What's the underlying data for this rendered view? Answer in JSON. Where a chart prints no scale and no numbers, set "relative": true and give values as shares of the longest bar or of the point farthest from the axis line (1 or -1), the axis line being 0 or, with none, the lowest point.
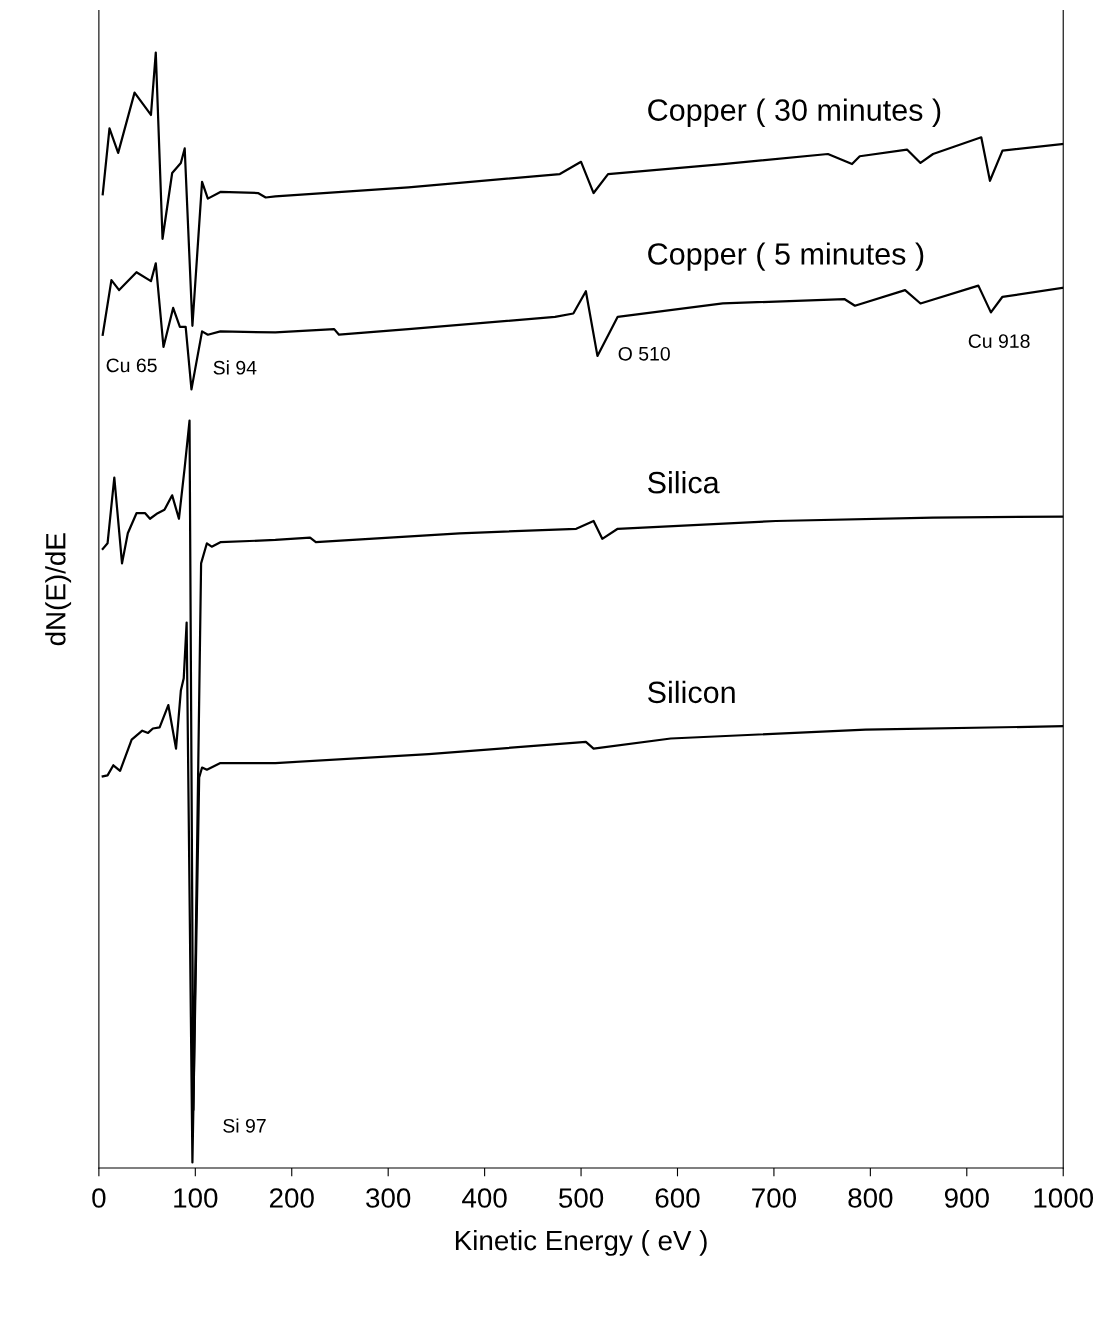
{
  "chart_data": {
    "type": "line",
    "relative": true,
    "xlabel": "Kinetic Energy ( eV )",
    "ylabel": "dN(E)/dE",
    "xlim": [
      0,
      1000
    ],
    "xticks": [
      0,
      100,
      200,
      300,
      400,
      500,
      600,
      700,
      800,
      900,
      1000
    ],
    "tick_labels": "x",
    "grid": false,
    "legend": false,
    "marker": "none",
    "line_style": "solid",
    "series": [
      {
        "name": "Copper ( 30 minutes )",
        "color": "#000000",
        "x": [
          4,
          11,
          20,
          37,
          54,
          59,
          66,
          76,
          85,
          89,
          97,
          107,
          113,
          126,
          165,
          173,
          183,
          321,
          478,
          500,
          513,
          528,
          647,
          756,
          781,
          789,
          838,
          852,
          865,
          915,
          924,
          937,
          1000
        ],
        "values": [
          0.873,
          0.932,
          0.91,
          0.964,
          0.944,
          1.0,
          0.833,
          0.892,
          0.901,
          0.914,
          0.755,
          0.884,
          0.869,
          0.875,
          0.874,
          0.87,
          0.871,
          0.879,
          0.891,
          0.902,
          0.874,
          0.891,
          0.9,
          0.909,
          0.9,
          0.907,
          0.913,
          0.901,
          0.909,
          0.924,
          0.885,
          0.912,
          0.918
        ]
      },
      {
        "name": "Copper ( 5 minutes )",
        "color": "#000000",
        "x": [
          4,
          13,
          21,
          39,
          54,
          59,
          67,
          77,
          84,
          90,
          96,
          107,
          113,
          126,
          183,
          244,
          249,
          321,
          473,
          492,
          505,
          517,
          538,
          647,
          773,
          784,
          836,
          852,
          912,
          925,
          937,
          1000
        ],
        "values": [
          0.747,
          0.796,
          0.787,
          0.803,
          0.795,
          0.811,
          0.736,
          0.771,
          0.754,
          0.754,
          0.698,
          0.75,
          0.747,
          0.75,
          0.749,
          0.752,
          0.747,
          0.752,
          0.763,
          0.766,
          0.786,
          0.728,
          0.763,
          0.775,
          0.779,
          0.773,
          0.787,
          0.775,
          0.791,
          0.767,
          0.781,
          0.789
        ]
      },
      {
        "name": "Silica",
        "color": "#000000",
        "x": [
          4,
          9,
          16,
          24,
          30,
          39,
          48,
          53,
          61,
          68,
          76,
          83,
          89,
          94,
          98,
          106,
          112,
          117,
          126,
          183,
          219,
          225,
          374,
          495,
          513,
          522,
          538,
          702,
          865,
          1000
        ],
        "values": [
          0.555,
          0.56,
          0.619,
          0.542,
          0.569,
          0.587,
          0.587,
          0.582,
          0.587,
          0.59,
          0.603,
          0.582,
          0.628,
          0.67,
          0.052,
          0.542,
          0.56,
          0.557,
          0.561,
          0.563,
          0.565,
          0.561,
          0.569,
          0.573,
          0.58,
          0.564,
          0.573,
          0.58,
          0.583,
          0.584
        ]
      },
      {
        "name": "Silicon",
        "color": "#000000",
        "x": [
          4,
          9,
          15,
          22,
          34,
          45,
          51,
          56,
          63,
          72,
          80,
          85,
          88,
          91,
          97,
          104,
          107,
          112,
          126,
          183,
          342,
          505,
          513,
          593,
          795,
          1000
        ],
        "values": [
          0.351,
          0.352,
          0.361,
          0.356,
          0.384,
          0.392,
          0.39,
          0.394,
          0.395,
          0.415,
          0.376,
          0.428,
          0.439,
          0.489,
          0.005,
          0.35,
          0.359,
          0.357,
          0.363,
          0.363,
          0.371,
          0.382,
          0.376,
          0.385,
          0.393,
          0.396
        ]
      }
    ],
    "annotations": [
      "Cu 65",
      "Si 94",
      "O 510",
      "Cu 918",
      "Si 97"
    ]
  }
}
